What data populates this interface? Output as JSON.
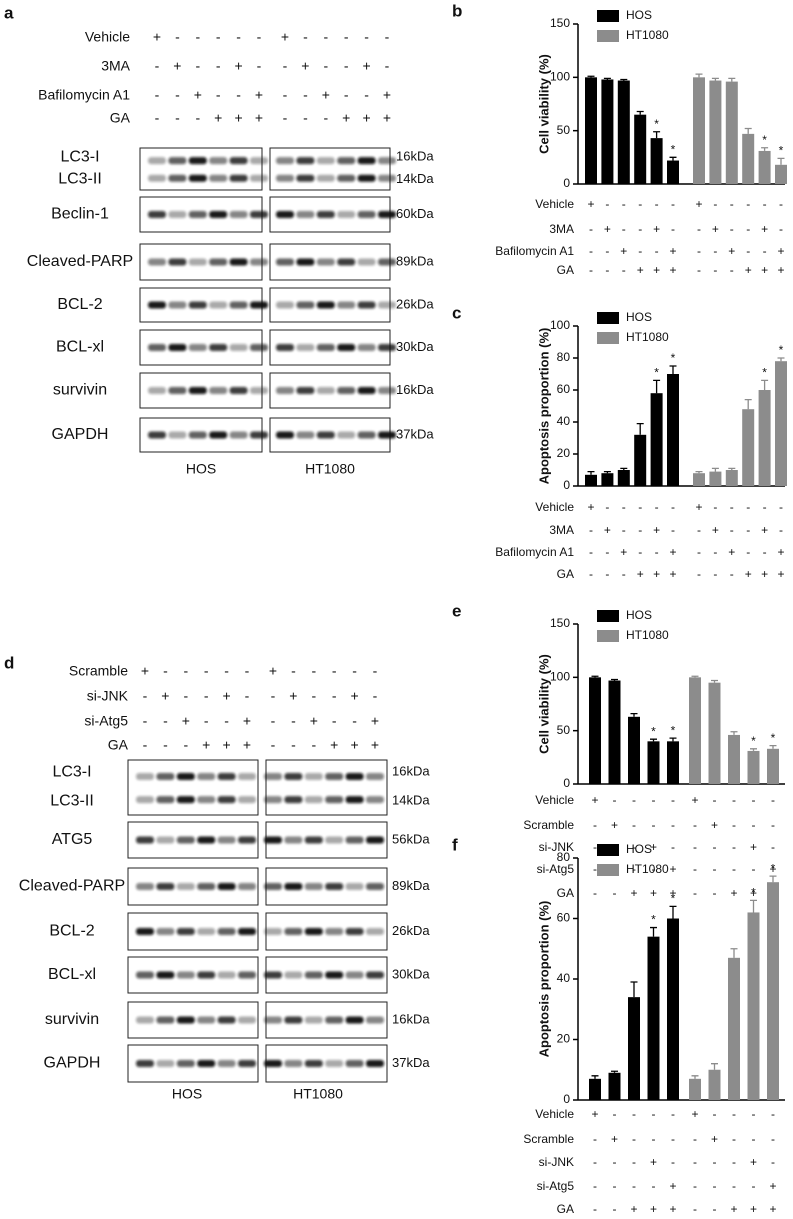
{
  "blot_a": {
    "panel": "a",
    "conditions": [
      {
        "label": "Vehicle",
        "signs": [
          "+",
          "-",
          "-",
          "-",
          "-",
          "-",
          "+",
          "-",
          "-",
          "-",
          "-",
          "-"
        ]
      },
      {
        "label": "3MA",
        "signs": [
          "-",
          "+",
          "-",
          "-",
          "+",
          "-",
          "-",
          "+",
          "-",
          "-",
          "+",
          "-"
        ]
      },
      {
        "label": "Bafilomycin A1",
        "signs": [
          "-",
          "-",
          "+",
          "-",
          "-",
          "+",
          "-",
          "-",
          "+",
          "-",
          "-",
          "+"
        ]
      },
      {
        "label": "GA",
        "signs": [
          "-",
          "-",
          "-",
          "+",
          "+",
          "+",
          "-",
          "-",
          "-",
          "+",
          "+",
          "+"
        ]
      }
    ],
    "rows": [
      {
        "labels": [
          "LC3-I",
          "LC3-II"
        ],
        "sizes": [
          "16kDa",
          "14kDa"
        ]
      },
      {
        "labels": [
          "Beclin-1"
        ],
        "sizes": [
          "60kDa"
        ]
      },
      {
        "labels": [
          "Cleaved-PARP"
        ],
        "sizes": [
          "89kDa"
        ]
      },
      {
        "labels": [
          "BCL-2"
        ],
        "sizes": [
          "26kDa"
        ]
      },
      {
        "labels": [
          "BCL-xl"
        ],
        "sizes": [
          "30kDa"
        ]
      },
      {
        "labels": [
          "survivin"
        ],
        "sizes": [
          "16kDa"
        ]
      },
      {
        "labels": [
          "GAPDH"
        ],
        "sizes": [
          "37kDa"
        ]
      }
    ],
    "groups": [
      "HOS",
      "HT1080"
    ]
  },
  "blot_d": {
    "panel": "d",
    "conditions": [
      {
        "label": "Scramble",
        "signs": [
          "+",
          "-",
          "-",
          "-",
          "-",
          "-",
          "+",
          "-",
          "-",
          "-",
          "-",
          "-"
        ]
      },
      {
        "label": "si-JNK",
        "signs": [
          "-",
          "+",
          "-",
          "-",
          "+",
          "-",
          "-",
          "+",
          "-",
          "-",
          "+",
          "-"
        ]
      },
      {
        "label": "si-Atg5",
        "signs": [
          "-",
          "-",
          "+",
          "-",
          "-",
          "+",
          "-",
          "-",
          "+",
          "-",
          "-",
          "+"
        ]
      },
      {
        "label": "GA",
        "signs": [
          "-",
          "-",
          "-",
          "+",
          "+",
          "+",
          "-",
          "-",
          "-",
          "+",
          "+",
          "+"
        ]
      }
    ],
    "rows": [
      {
        "labels": [
          "LC3-I",
          "LC3-II"
        ],
        "sizes": [
          "16kDa",
          "14kDa"
        ]
      },
      {
        "labels": [
          "ATG5"
        ],
        "sizes": [
          "56kDa"
        ]
      },
      {
        "labels": [
          "Cleaved-PARP"
        ],
        "sizes": [
          "89kDa"
        ]
      },
      {
        "labels": [
          "BCL-2"
        ],
        "sizes": [
          "26kDa"
        ]
      },
      {
        "labels": [
          "BCL-xl"
        ],
        "sizes": [
          "30kDa"
        ]
      },
      {
        "labels": [
          "survivin"
        ],
        "sizes": [
          "16kDa"
        ]
      },
      {
        "labels": [
          "GAPDH"
        ],
        "sizes": [
          "37kDa"
        ]
      }
    ],
    "groups": [
      "HOS",
      "HT1080"
    ]
  },
  "chart_data": [
    {
      "type": "bar",
      "panel": "b",
      "ylabel": "Cell viability (%)",
      "ylim": [
        0,
        150
      ],
      "yticks": [
        0,
        50,
        100,
        150
      ],
      "legend": "upper left",
      "series": [
        {
          "name": "HOS",
          "color": "#000000",
          "values": [
            100,
            98,
            97,
            65,
            43,
            22
          ],
          "errors": [
            1,
            1,
            1,
            3,
            6,
            3
          ],
          "annotations": [
            null,
            null,
            null,
            null,
            "*",
            "*"
          ]
        },
        {
          "name": "HT1080",
          "color": "#8c8c8c",
          "values": [
            100,
            97,
            96,
            47,
            31,
            18
          ],
          "errors": [
            3,
            2,
            3,
            5,
            3,
            6
          ],
          "annotations": [
            null,
            null,
            null,
            null,
            "*",
            "*"
          ]
        }
      ],
      "conditions": [
        {
          "label": "Vehicle",
          "signs": [
            "+",
            "-",
            "-",
            "-",
            "-",
            "-",
            "+",
            "-",
            "-",
            "-",
            "-",
            "-"
          ]
        },
        {
          "label": "3MA",
          "signs": [
            "-",
            "+",
            "-",
            "-",
            "+",
            "-",
            "-",
            "+",
            "-",
            "-",
            "+",
            "-"
          ]
        },
        {
          "label": "Bafilomycin A1",
          "signs": [
            "-",
            "-",
            "+",
            "-",
            "-",
            "+",
            "-",
            "-",
            "+",
            "-",
            "-",
            "+"
          ]
        },
        {
          "label": "GA",
          "signs": [
            "-",
            "-",
            "-",
            "+",
            "+",
            "+",
            "-",
            "-",
            "-",
            "+",
            "+",
            "+"
          ]
        }
      ]
    },
    {
      "type": "bar",
      "panel": "c",
      "ylabel": "Apoptosis proportion (%)",
      "ylim": [
        0,
        100
      ],
      "yticks": [
        0,
        20,
        40,
        60,
        80,
        100
      ],
      "legend": "upper left",
      "series": [
        {
          "name": "HOS",
          "color": "#000000",
          "values": [
            7,
            8,
            10,
            32,
            58,
            70
          ],
          "errors": [
            2,
            1,
            1,
            7,
            8,
            5
          ],
          "annotations": [
            null,
            null,
            null,
            null,
            "*",
            "*"
          ]
        },
        {
          "name": "HT1080",
          "color": "#8c8c8c",
          "values": [
            8,
            9,
            10,
            48,
            60,
            78
          ],
          "errors": [
            1,
            2,
            1,
            6,
            6,
            2
          ],
          "annotations": [
            null,
            null,
            null,
            null,
            "*",
            "*"
          ]
        }
      ],
      "conditions": [
        {
          "label": "Vehicle",
          "signs": [
            "+",
            "-",
            "-",
            "-",
            "-",
            "-",
            "+",
            "-",
            "-",
            "-",
            "-",
            "-"
          ]
        },
        {
          "label": "3MA",
          "signs": [
            "-",
            "+",
            "-",
            "-",
            "+",
            "-",
            "-",
            "+",
            "-",
            "-",
            "+",
            "-"
          ]
        },
        {
          "label": "Bafilomycin A1",
          "signs": [
            "-",
            "-",
            "+",
            "-",
            "-",
            "+",
            "-",
            "-",
            "+",
            "-",
            "-",
            "+"
          ]
        },
        {
          "label": "GA",
          "signs": [
            "-",
            "-",
            "-",
            "+",
            "+",
            "+",
            "-",
            "-",
            "-",
            "+",
            "+",
            "+"
          ]
        }
      ]
    },
    {
      "type": "bar",
      "panel": "e",
      "ylabel": "Cell viability (%)",
      "ylim": [
        0,
        150
      ],
      "yticks": [
        0,
        50,
        100,
        150
      ],
      "legend": "upper left",
      "series": [
        {
          "name": "HOS",
          "color": "#000000",
          "values": [
            100,
            97,
            63,
            40,
            40
          ],
          "errors": [
            1,
            1,
            3,
            2,
            3
          ],
          "annotations": [
            null,
            null,
            null,
            "*",
            "*"
          ]
        },
        {
          "name": "HT1080",
          "color": "#8c8c8c",
          "values": [
            100,
            95,
            46,
            31,
            33
          ],
          "errors": [
            1,
            2,
            3,
            2,
            3
          ],
          "annotations": [
            null,
            null,
            null,
            "*",
            "*"
          ]
        }
      ],
      "conditions": [
        {
          "label": "Vehicle",
          "signs": [
            "+",
            "-",
            "-",
            "-",
            "-",
            "+",
            "-",
            "-",
            "-",
            "-"
          ]
        },
        {
          "label": "Scramble",
          "signs": [
            "-",
            "+",
            "-",
            "-",
            "-",
            "-",
            "+",
            "-",
            "-",
            "-"
          ]
        },
        {
          "label": "si-JNK",
          "signs": [
            "-",
            "-",
            "-",
            "+",
            "-",
            "-",
            "-",
            "-",
            "+",
            "-"
          ]
        },
        {
          "label": "si-Atg5",
          "signs": [
            "-",
            "-",
            "-",
            "-",
            "+",
            "-",
            "-",
            "-",
            "-",
            "+"
          ]
        },
        {
          "label": "GA",
          "signs": [
            "-",
            "-",
            "+",
            "+",
            "+",
            "-",
            "-",
            "+",
            "+",
            "+"
          ]
        }
      ]
    },
    {
      "type": "bar",
      "panel": "f",
      "ylabel": "Apoptosis proportion (%)",
      "ylim": [
        0,
        80
      ],
      "yticks": [
        0,
        20,
        40,
        60,
        80
      ],
      "legend": "upper left",
      "series": [
        {
          "name": "HOS",
          "color": "#000000",
          "values": [
            7,
            9,
            34,
            54,
            60
          ],
          "errors": [
            1,
            0.5,
            5,
            3,
            4
          ],
          "annotations": [
            null,
            null,
            null,
            "*",
            "*"
          ]
        },
        {
          "name": "HT1080",
          "color": "#8c8c8c",
          "values": [
            7,
            10,
            47,
            62,
            72
          ],
          "errors": [
            1,
            2,
            3,
            4,
            2
          ],
          "annotations": [
            null,
            null,
            null,
            "*",
            "*"
          ]
        }
      ],
      "conditions": [
        {
          "label": "Vehicle",
          "signs": [
            "+",
            "-",
            "-",
            "-",
            "-",
            "+",
            "-",
            "-",
            "-",
            "-"
          ]
        },
        {
          "label": "Scramble",
          "signs": [
            "-",
            "+",
            "-",
            "-",
            "-",
            "-",
            "+",
            "-",
            "-",
            "-"
          ]
        },
        {
          "label": "si-JNK",
          "signs": [
            "-",
            "-",
            "-",
            "+",
            "-",
            "-",
            "-",
            "-",
            "+",
            "-"
          ]
        },
        {
          "label": "si-Atg5",
          "signs": [
            "-",
            "-",
            "-",
            "-",
            "+",
            "-",
            "-",
            "-",
            "-",
            "+"
          ]
        },
        {
          "label": "GA",
          "signs": [
            "-",
            "-",
            "+",
            "+",
            "+",
            "-",
            "-",
            "+",
            "+",
            "+"
          ]
        }
      ]
    }
  ]
}
